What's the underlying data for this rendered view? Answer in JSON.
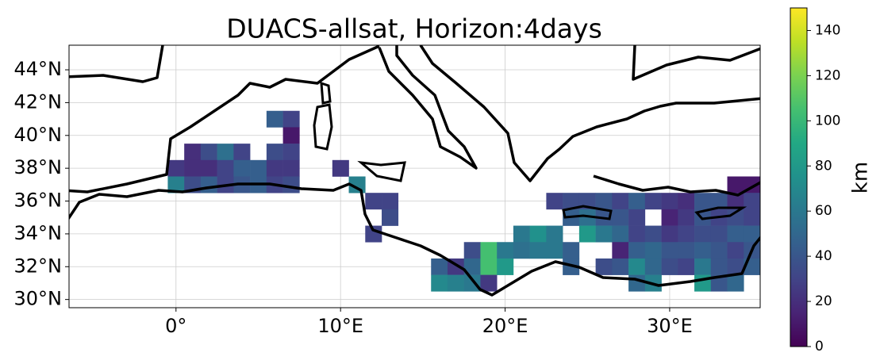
{
  "chart_data": {
    "type": "heatmap",
    "title": "DUACS-allsat, Horizon:4days",
    "xlim": [
      -6.5,
      35.5
    ],
    "ylim": [
      29.5,
      45.5
    ],
    "xticks": [
      {
        "value": 0,
        "label": "0°"
      },
      {
        "value": 10,
        "label": "10°E"
      },
      {
        "value": 20,
        "label": "20°E"
      },
      {
        "value": 30,
        "label": "30°E"
      }
    ],
    "yticks": [
      {
        "value": 30,
        "label": "30°N"
      },
      {
        "value": 32,
        "label": "32°N"
      },
      {
        "value": 34,
        "label": "34°N"
      },
      {
        "value": 36,
        "label": "36°N"
      },
      {
        "value": 38,
        "label": "38°N"
      },
      {
        "value": 40,
        "label": "40°N"
      },
      {
        "value": 42,
        "label": "42°N"
      },
      {
        "value": 44,
        "label": "44°N"
      }
    ],
    "grid": true,
    "colormap": "viridis",
    "colorbar": {
      "label": "km",
      "lim": [
        0,
        150
      ],
      "ticks": [
        0,
        20,
        40,
        60,
        80,
        100,
        120,
        140
      ]
    },
    "cells": [
      [
        6,
        41,
        45
      ],
      [
        7,
        41,
        30
      ],
      [
        7,
        40,
        10
      ],
      [
        1,
        39,
        20
      ],
      [
        2,
        39,
        35
      ],
      [
        3,
        39,
        55
      ],
      [
        4,
        39,
        30
      ],
      [
        6,
        39,
        35
      ],
      [
        7,
        39,
        30
      ],
      [
        0,
        38,
        25
      ],
      [
        1,
        38,
        20
      ],
      [
        2,
        38,
        20
      ],
      [
        3,
        38,
        30
      ],
      [
        4,
        38,
        45
      ],
      [
        5,
        38,
        45
      ],
      [
        6,
        38,
        25
      ],
      [
        7,
        38,
        25
      ],
      [
        10,
        38,
        25
      ],
      [
        0,
        37,
        65
      ],
      [
        1,
        37,
        35
      ],
      [
        2,
        37,
        45
      ],
      [
        3,
        37,
        30
      ],
      [
        4,
        37,
        40
      ],
      [
        5,
        37,
        45
      ],
      [
        6,
        37,
        30
      ],
      [
        7,
        37,
        35
      ],
      [
        11,
        37,
        65
      ],
      [
        34,
        37,
        10
      ],
      [
        35,
        37,
        10
      ],
      [
        12,
        36,
        30
      ],
      [
        13,
        36,
        30
      ],
      [
        23,
        36,
        30
      ],
      [
        24,
        36,
        35
      ],
      [
        25,
        36,
        35
      ],
      [
        26,
        36,
        40
      ],
      [
        27,
        36,
        30
      ],
      [
        28,
        36,
        45
      ],
      [
        29,
        36,
        30
      ],
      [
        30,
        36,
        25
      ],
      [
        31,
        36,
        20
      ],
      [
        32,
        36,
        40
      ],
      [
        33,
        36,
        40
      ],
      [
        34,
        36,
        20
      ],
      [
        35,
        36,
        30
      ],
      [
        13,
        35,
        35
      ],
      [
        24,
        35,
        45
      ],
      [
        25,
        35,
        55
      ],
      [
        26,
        35,
        40
      ],
      [
        27,
        35,
        40
      ],
      [
        28,
        35,
        30
      ],
      [
        30,
        35,
        15
      ],
      [
        31,
        35,
        25
      ],
      [
        32,
        35,
        40
      ],
      [
        33,
        35,
        30
      ],
      [
        34,
        35,
        35
      ],
      [
        35,
        35,
        30
      ],
      [
        12,
        34,
        30
      ],
      [
        21,
        34,
        60
      ],
      [
        22,
        34,
        75
      ],
      [
        23,
        34,
        60
      ],
      [
        25,
        34,
        80
      ],
      [
        26,
        34,
        60
      ],
      [
        27,
        34,
        50
      ],
      [
        28,
        34,
        30
      ],
      [
        29,
        34,
        35
      ],
      [
        30,
        34,
        25
      ],
      [
        31,
        34,
        30
      ],
      [
        32,
        34,
        35
      ],
      [
        33,
        34,
        35
      ],
      [
        34,
        34,
        45
      ],
      [
        35,
        34,
        45
      ],
      [
        18,
        33,
        35
      ],
      [
        19,
        33,
        105
      ],
      [
        20,
        33,
        60
      ],
      [
        21,
        33,
        55
      ],
      [
        22,
        33,
        60
      ],
      [
        23,
        33,
        60
      ],
      [
        24,
        33,
        45
      ],
      [
        27,
        33,
        15
      ],
      [
        28,
        33,
        45
      ],
      [
        29,
        33,
        50
      ],
      [
        30,
        33,
        40
      ],
      [
        31,
        33,
        40
      ],
      [
        32,
        33,
        45
      ],
      [
        33,
        33,
        40
      ],
      [
        34,
        33,
        30
      ],
      [
        35,
        33,
        40
      ],
      [
        16,
        32,
        45
      ],
      [
        17,
        32,
        25
      ],
      [
        18,
        32,
        50
      ],
      [
        19,
        32,
        105
      ],
      [
        20,
        32,
        80
      ],
      [
        24,
        32,
        45
      ],
      [
        26,
        32,
        35
      ],
      [
        27,
        32,
        40
      ],
      [
        28,
        32,
        70
      ],
      [
        29,
        32,
        50
      ],
      [
        30,
        32,
        35
      ],
      [
        31,
        32,
        30
      ],
      [
        32,
        32,
        60
      ],
      [
        33,
        32,
        40
      ],
      [
        34,
        32,
        35
      ],
      [
        35,
        32,
        45
      ],
      [
        16,
        31,
        70
      ],
      [
        17,
        31,
        65
      ],
      [
        18,
        31,
        60
      ],
      [
        19,
        31,
        25
      ],
      [
        28,
        31,
        50
      ],
      [
        29,
        31,
        65
      ],
      [
        32,
        31,
        80
      ],
      [
        33,
        31,
        40
      ],
      [
        34,
        31,
        50
      ]
    ]
  }
}
